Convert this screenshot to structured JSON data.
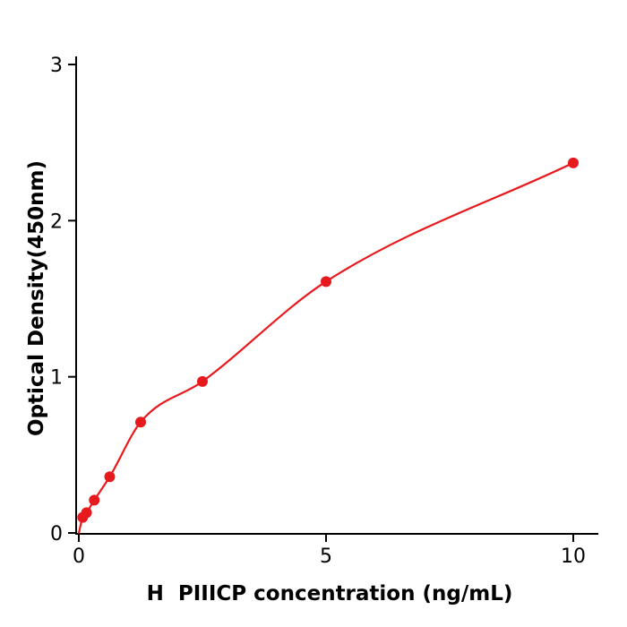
{
  "chart_data": {
    "type": "scatter",
    "title": "",
    "xlabel": "H  PIIICP concentration (ng/mL)",
    "ylabel": "Optical Density(450nm)",
    "x": [
      0.078,
      0.156,
      0.3125,
      0.625,
      1.25,
      2.5,
      5,
      10
    ],
    "y": [
      0.1,
      0.13,
      0.21,
      0.36,
      0.71,
      0.97,
      1.61,
      2.37
    ],
    "curve_start": [
      0,
      0
    ],
    "x_ticks": [
      0,
      5,
      10
    ],
    "y_ticks": [
      0,
      1,
      2,
      3
    ],
    "xlim": [
      0,
      10.5
    ],
    "ylim": [
      0,
      3
    ],
    "grid": false,
    "legend_position": "none",
    "point_color": "#e8191c",
    "line_color": "#e8191c",
    "axis_color": "#000000",
    "background": "#ffffff"
  }
}
